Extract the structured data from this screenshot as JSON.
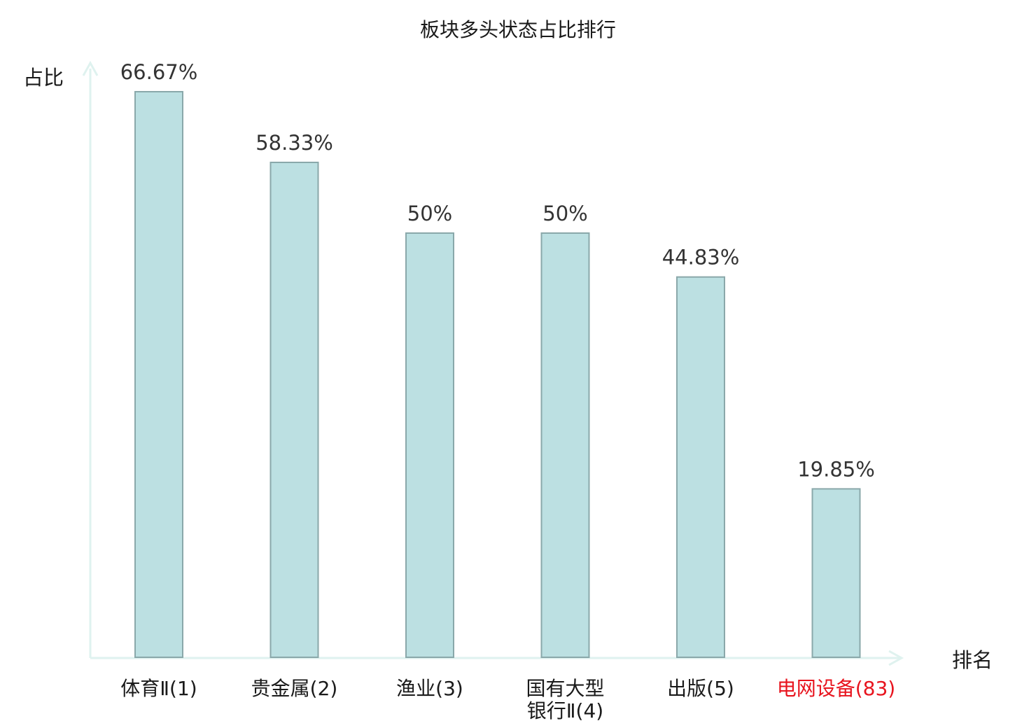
{
  "chart_data": {
    "type": "bar",
    "title": "板块多头状态占比排行",
    "xlabel": "排名",
    "ylabel": "占比",
    "ylim": [
      0,
      75
    ],
    "grid": false,
    "categories": [
      {
        "name": "体育Ⅱ",
        "rank": "(1)",
        "lines": [
          "体育Ⅱ(1)"
        ],
        "highlight": false
      },
      {
        "name": "贵金属",
        "rank": "(2)",
        "lines": [
          "贵金属(2)"
        ],
        "highlight": false
      },
      {
        "name": "渔业",
        "rank": "(3)",
        "lines": [
          "渔业(3)"
        ],
        "highlight": false
      },
      {
        "name": "国有大型银行Ⅱ",
        "rank": "(4)",
        "lines": [
          "国有大型",
          "银行Ⅱ(4)"
        ],
        "highlight": false
      },
      {
        "name": "出版",
        "rank": "(5)",
        "lines": [
          "出版(5)"
        ],
        "highlight": false
      },
      {
        "name": "电网设备",
        "rank": "(83)",
        "lines": [
          "电网设备(83)"
        ],
        "highlight": true
      }
    ],
    "values": [
      66.67,
      58.33,
      50,
      50,
      44.83,
      19.85
    ],
    "value_labels": [
      "66.67%",
      "58.33%",
      "50%",
      "50%",
      "44.83%",
      "19.85%"
    ],
    "colors": {
      "bar_fill": "#bce0e2",
      "bar_stroke": "#8aa8aa",
      "axis": "#dff2ef",
      "label_normal": "#1a1a1a",
      "label_highlight": "#e8141e"
    }
  }
}
